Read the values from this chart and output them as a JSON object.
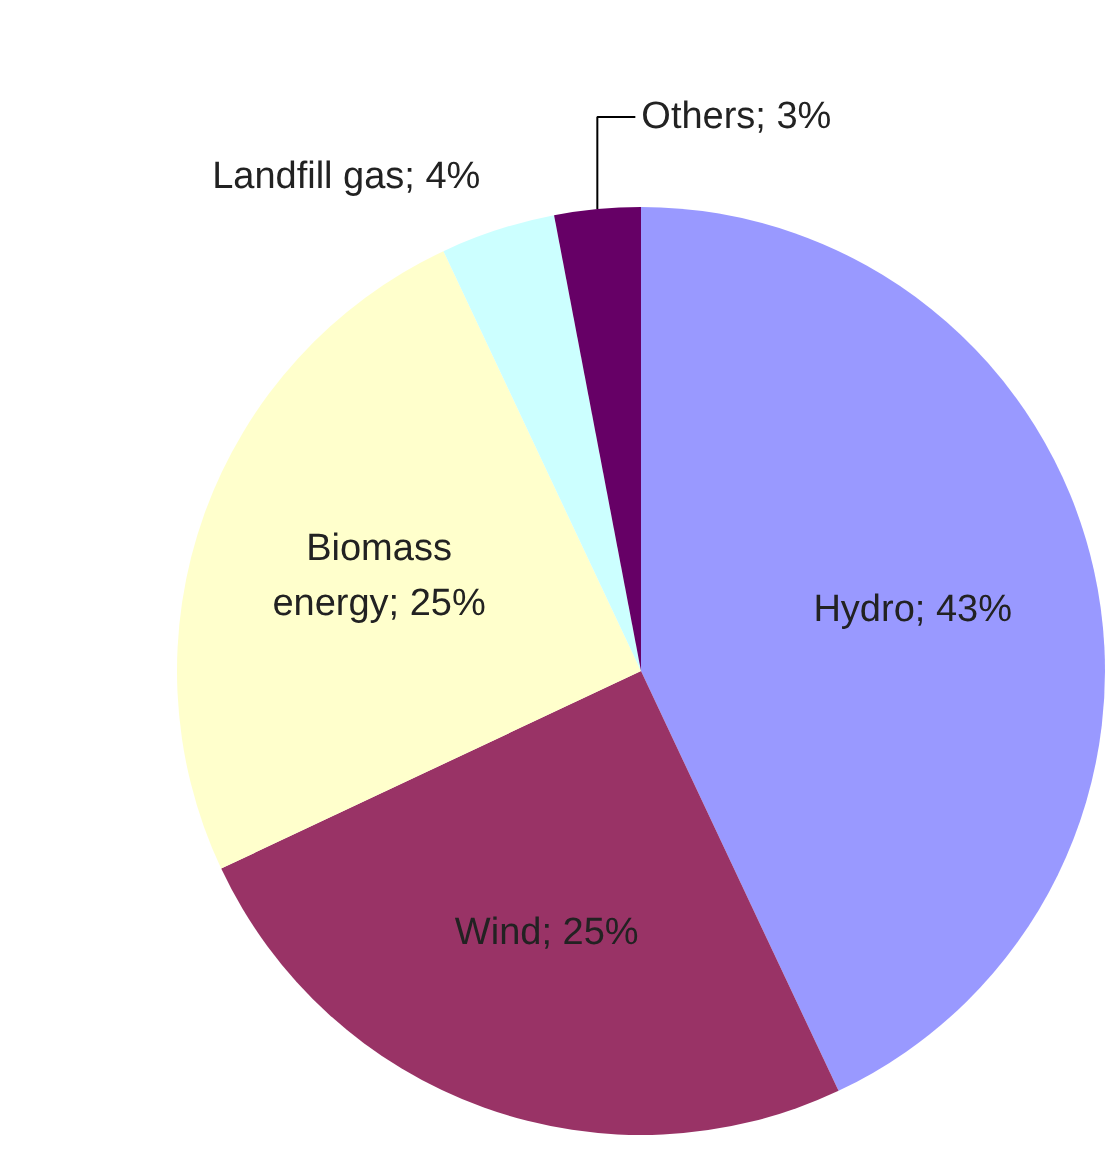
{
  "chart_data": {
    "type": "pie",
    "categories": [
      "Hydro; 43%",
      "Wind; 25%",
      "Biomass energy; 25%",
      "Landfill gas; 4%",
      "Others; 3%"
    ],
    "values": [
      43,
      25,
      25,
      4,
      3
    ],
    "colors": [
      "#9999ff",
      "#993366",
      "#ffffcc",
      "#ccffff",
      "#660066"
    ]
  }
}
